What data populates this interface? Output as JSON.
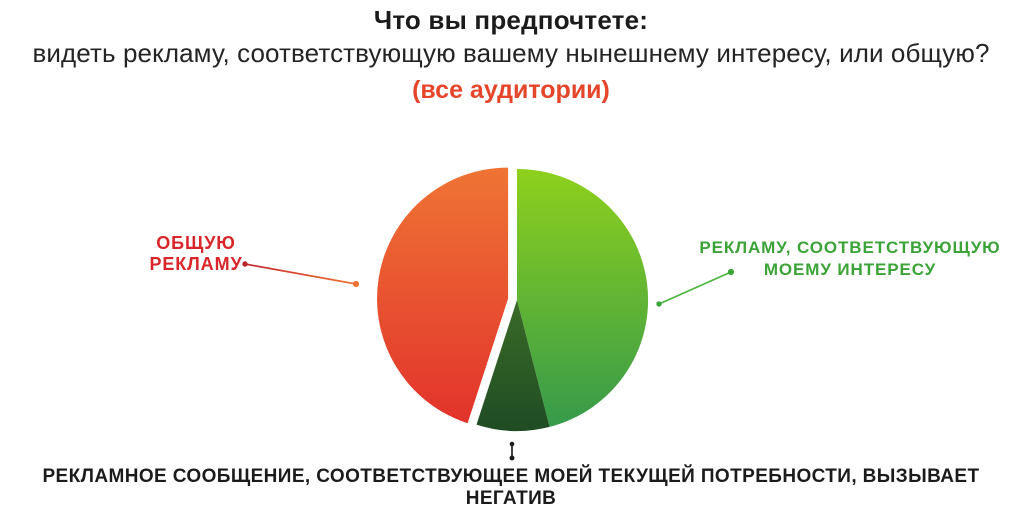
{
  "header": {
    "title": "Что вы предпочтете:",
    "subtitle": "видеть рекламу, соответствующую вашему нынешнему интересу, или общую?",
    "audience_note": "(все аудитории)"
  },
  "labels": {
    "general_ads": "ОБЩУЮ\nРЕКЛАМУ",
    "interest_ads": "РЕКЛАМУ, СООТВЕТСТВУЮЩУЮ\nМОЕМУ ИНТЕРЕСУ",
    "negative_note": "РЕКЛАМНОЕ СООБЩЕНИЕ, СООТВЕТСТВУЮЩЕЕ МОЕЙ ТЕКУЩЕЙ ПОТРЕБНОСТИ, ВЫЗЫВАЕТ НЕГАТИВ"
  },
  "colors": {
    "title_text": "#1b1b1b",
    "audience_note_text": "#e5462b",
    "general_label_text": "#d9262b",
    "interest_label_text": "#3ba337",
    "negative_note_text": "#1b1b1b"
  },
  "chart_data": {
    "type": "pie",
    "title": "Что вы предпочтете: видеть рекламу, соответствующую вашему нынешнему интересу, или общую? (все аудитории)",
    "values_shown_on_chart": false,
    "legend_position": "callout-labels",
    "start_angle_deg_from_top": 0,
    "slices": [
      {
        "id": "interest",
        "label": "РЕКЛАМУ, СООТВЕТСТВУЮЩУЮ МОЕМУ ИНТЕРЕСУ",
        "value": 46,
        "color_top": "#8ed01c",
        "color_bottom": "#369a4b",
        "explode": 0
      },
      {
        "id": "negative",
        "label": "РЕКЛАМНОЕ СООБЩЕНИЕ, СООТВЕТСТВУЮЩЕЕ МОЕЙ ТЕКУЩЕЙ ПОТРЕБНОСТИ, ВЫЗЫВАЕТ НЕГАТИВ",
        "value": 9,
        "color_top": "#3a6b28",
        "color_bottom": "#1f4c23",
        "explode": 0
      },
      {
        "id": "general",
        "label": "ОБЩУЮ РЕКЛАМУ",
        "value": 45,
        "color_top": "#ef7434",
        "color_bottom": "#e2332c",
        "explode": 9
      }
    ]
  }
}
